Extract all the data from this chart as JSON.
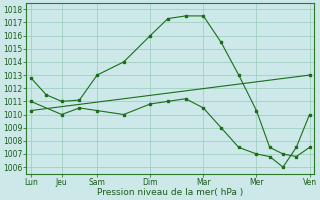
{
  "xlabel": "Pression niveau de la mer( hPa )",
  "bg_color": "#cce8e8",
  "grid_color": "#99ccbb",
  "line_color": "#1a6e1a",
  "x_labels": [
    "Lun",
    "Jeu",
    "Sam",
    "Dim",
    "Mar",
    "Mer",
    "Ven"
  ],
  "x_ticks": [
    0,
    0.7,
    1.5,
    2.7,
    3.9,
    5.1,
    6.3
  ],
  "ylim": [
    1005.5,
    1018.5
  ],
  "yticks": [
    1006,
    1007,
    1008,
    1009,
    1010,
    1011,
    1012,
    1013,
    1014,
    1015,
    1016,
    1017,
    1018
  ],
  "line1_x": [
    0,
    0.35,
    0.7,
    1.1,
    1.5,
    2.1,
    2.7,
    3.1,
    3.5,
    3.9,
    4.3,
    4.7,
    5.1,
    5.4,
    5.7,
    6.0,
    6.3
  ],
  "line1_y": [
    1012.8,
    1011.5,
    1011.0,
    1011.1,
    1013.0,
    1014.0,
    1016.0,
    1017.3,
    1017.5,
    1017.5,
    1015.5,
    1013.0,
    1010.3,
    1007.5,
    1007.0,
    1006.8,
    1007.5
  ],
  "line2_x": [
    0,
    0.7,
    1.1,
    1.5,
    2.1,
    2.7,
    3.1,
    3.5,
    3.9,
    4.3,
    4.7,
    5.1,
    5.4,
    5.7,
    6.0,
    6.3
  ],
  "line2_y": [
    1011.0,
    1010.0,
    1010.5,
    1010.3,
    1010.0,
    1010.8,
    1011.0,
    1011.2,
    1010.5,
    1009.0,
    1007.5,
    1007.0,
    1006.8,
    1006.0,
    1007.5,
    1010.0
  ],
  "line3_x": [
    0,
    6.3
  ],
  "line3_y": [
    1010.3,
    1013.0
  ]
}
